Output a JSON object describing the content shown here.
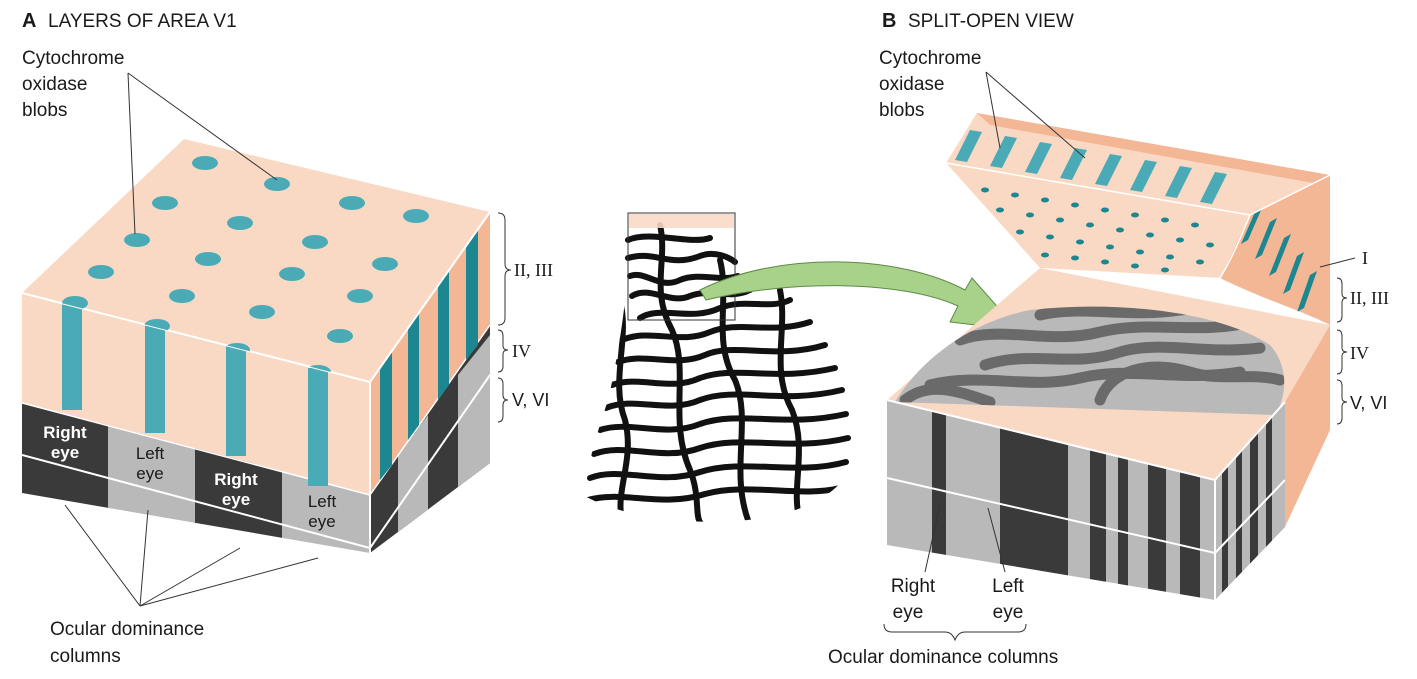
{
  "panel_a": {
    "letter": "A",
    "title": "LAYERS OF AREA V1",
    "blob_label": [
      "Cytochrome",
      "oxidase",
      "blobs"
    ],
    "layer_labels": [
      "II, III",
      "IV",
      "V, VI"
    ],
    "eye_labels": [
      [
        "Right",
        "eye"
      ],
      [
        "Left",
        "eye"
      ],
      [
        "Right",
        "eye"
      ],
      [
        "Left",
        "eye"
      ]
    ],
    "column_label": [
      "Ocular dominance",
      "columns"
    ]
  },
  "panel_b": {
    "letter": "B",
    "title": "SPLIT-OPEN VIEW",
    "blob_label": [
      "Cytochrome",
      "oxidase",
      "blobs"
    ],
    "layer_labels": [
      "I",
      "II, III",
      "IV",
      "V, VI"
    ],
    "eye_labels": [
      [
        "Right",
        "eye"
      ],
      [
        "Left",
        "eye"
      ]
    ],
    "column_label": "Ocular dominance columns"
  },
  "colors": {
    "peach": "#f9d9c4",
    "peach_side": "#f4b796",
    "blob_teal": "#4aabb6",
    "blob_dark_teal": "#1c8790",
    "column_dark": "#3a3a3a",
    "column_light": "#b9b9b9",
    "arrow_green": "#a8d18a"
  }
}
